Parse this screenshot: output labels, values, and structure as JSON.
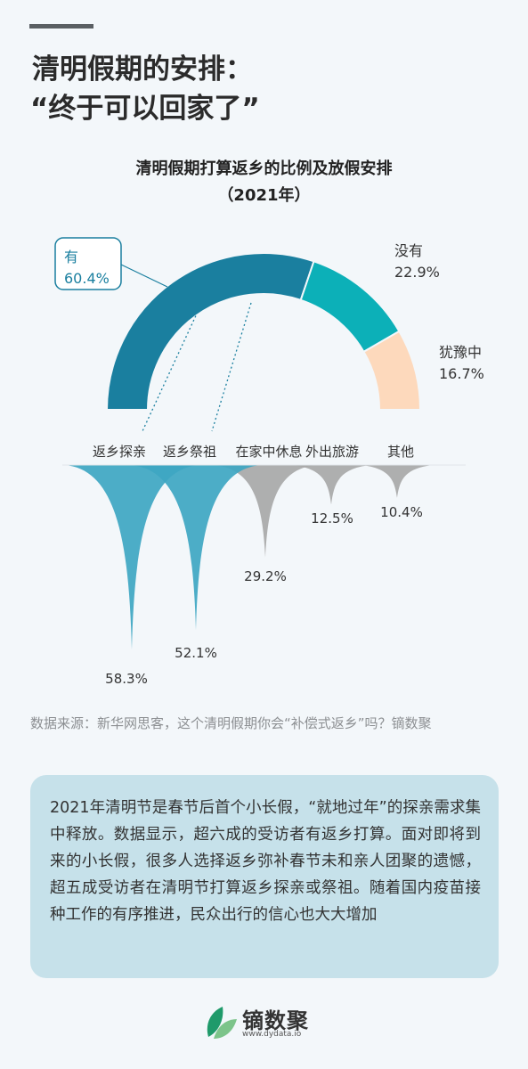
{
  "headline": {
    "line1": "清明假期的安排：",
    "line2": "“终于可以回家了”"
  },
  "chart_data": [
    {
      "type": "donut",
      "title": "清明假期打算返乡的比例及放假安排",
      "subtitle": "（2021年）",
      "categories": [
        "有",
        "没有",
        "犹豫中"
      ],
      "values": [
        60.4,
        22.9,
        16.7
      ],
      "value_labels": [
        "60.4%",
        "22.9%",
        "16.7%"
      ],
      "colors": [
        "#1a7f9f",
        "#0cb0b8",
        "#fdd9bc"
      ],
      "shape": "half-circle"
    },
    {
      "type": "bar",
      "orientation": "downward spike",
      "categories": [
        "返乡探亲",
        "返乡祭祖",
        "在家中休息",
        "外出旅游",
        "其他"
      ],
      "values": [
        58.3,
        52.1,
        29.2,
        12.5,
        10.4
      ],
      "value_labels": [
        "58.3%",
        "52.1%",
        "29.2%",
        "12.5%",
        "10.4%"
      ],
      "colors": [
        "#3ea6c2",
        "#3ea6c2",
        "#a8a8a8",
        "#a8a8a8",
        "#a8a8a8"
      ]
    }
  ],
  "source": "数据来源：新华网思客，这个清明假期你会“补偿式返乡”吗？镝数聚",
  "summary": "2021年清明节是春节后首个小长假，“就地过年”的探亲需求集中释放。数据显示，超六成的受访者有返乡打算。面对即将到来的小长假，很多人选择返乡弥补春节未和亲人团聚的遗憾，超五成受访者在清明节打算返乡探亲或祭祖。随着国内疫苗接种工作的有序推进，民众出行的信心也大大增加",
  "logo": {
    "name": "镝数聚",
    "url": "www.dydata.io",
    "icon": "leaf-icon",
    "colors": [
      "#1f9a6a",
      "#7cc48a"
    ]
  }
}
